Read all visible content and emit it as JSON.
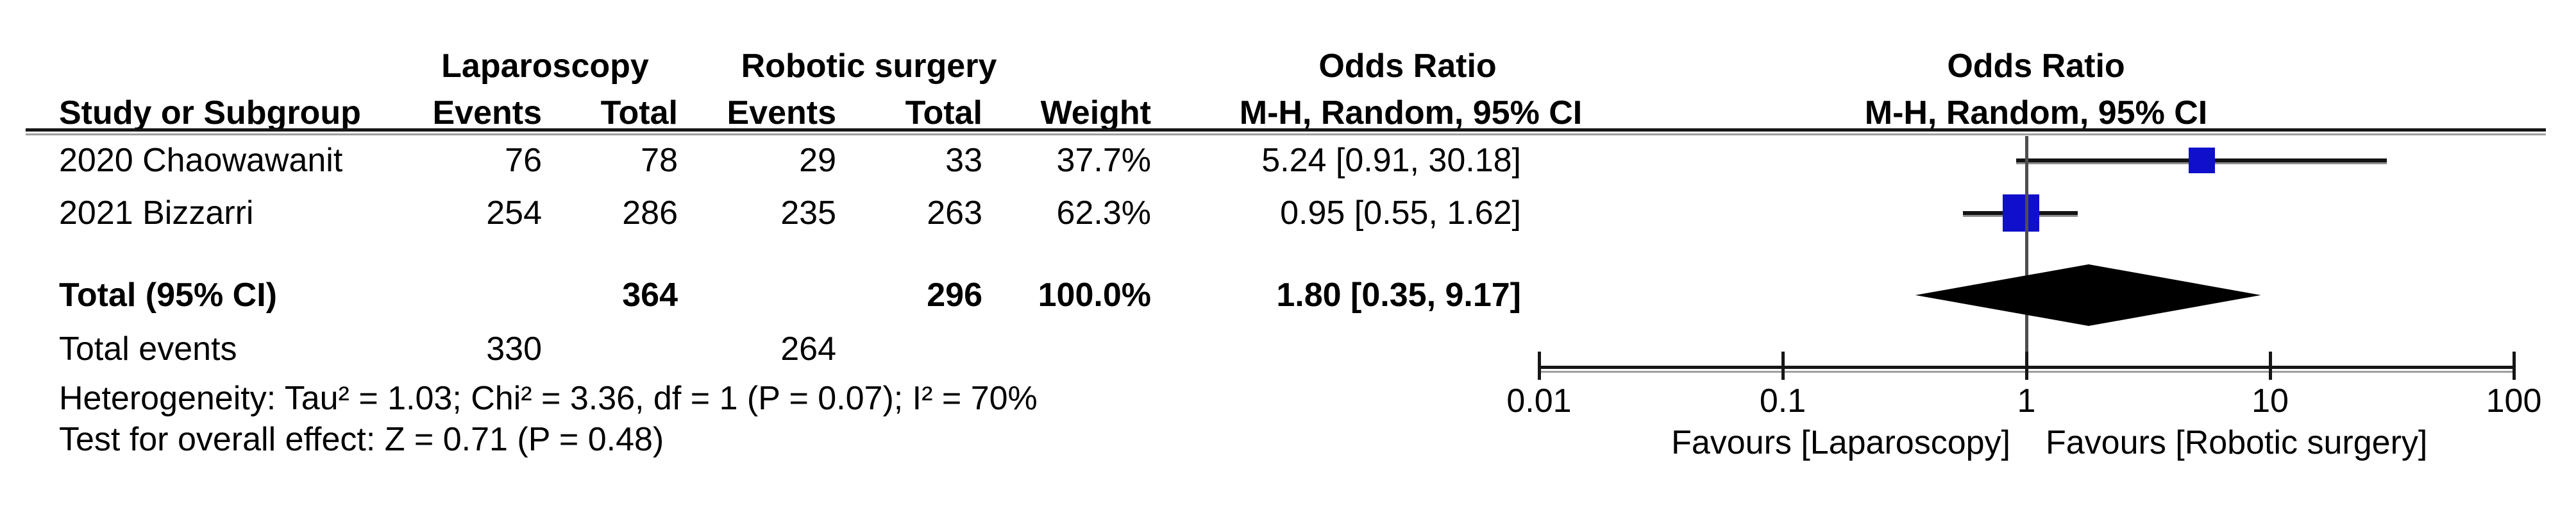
{
  "table": {
    "group_headers": {
      "treatment": "Laparoscopy",
      "control": "Robotic surgery",
      "or_table": "Odds Ratio",
      "or_plot": "Odds Ratio"
    },
    "columns": {
      "study": "Study or Subgroup",
      "events1": "Events",
      "total1": "Total",
      "events2": "Events",
      "total2": "Total",
      "weight": "Weight",
      "mh_table": "M-H, Random, 95% CI",
      "mh_plot": "M-H, Random, 95% CI"
    },
    "rows": [
      {
        "study": "2020 Chaowawanit",
        "events1": "76",
        "total1": "78",
        "events2": "29",
        "total2": "33",
        "weight": "37.7%",
        "or_ci": "5.24 [0.91, 30.18]"
      },
      {
        "study": "2021 Bizzarri",
        "events1": "254",
        "total1": "286",
        "events2": "235",
        "total2": "263",
        "weight": "62.3%",
        "or_ci": "0.95 [0.55, 1.62]"
      }
    ],
    "total_row": {
      "label": "Total (95% CI)",
      "total1": "364",
      "total2": "296",
      "weight": "100.0%",
      "or_ci": "1.80 [0.35, 9.17]"
    },
    "total_events_row": {
      "label": "Total events",
      "events1": "330",
      "events2": "264"
    },
    "heterogeneity": "Heterogeneity: Tau² = 1.03; Chi² = 3.36, df = 1 (P = 0.07); I² = 70%",
    "overall_effect": "Test for overall effect: Z = 0.71 (P = 0.48)"
  },
  "chart_data": {
    "type": "scatter",
    "subtype": "forest-plot",
    "effect_measure": "Odds Ratio, M-H, Random, 95% CI",
    "x_scale": "log10",
    "x_ticks": [
      0.01,
      0.1,
      1,
      10,
      100
    ],
    "x_range": [
      0.01,
      100
    ],
    "studies": [
      {
        "name": "2020 Chaowawanit",
        "or": 5.24,
        "ci_low": 0.91,
        "ci_high": 30.18,
        "weight_pct": 37.7
      },
      {
        "name": "2021 Bizzarri",
        "or": 0.95,
        "ci_low": 0.55,
        "ci_high": 1.62,
        "weight_pct": 62.3
      }
    ],
    "total": {
      "or": 1.8,
      "ci_low": 0.35,
      "ci_high": 9.17
    },
    "favours_left": "Favours [Laparoscopy]",
    "favours_right": "Favours [Robotic surgery]",
    "marker_color": "#1010CC",
    "diamond_color": "#000000",
    "line_color": "#161616"
  }
}
